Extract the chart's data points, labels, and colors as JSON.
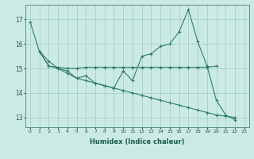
{
  "title": "",
  "xlabel": "Humidex (Indice chaleur)",
  "bg_color": "#cceae4",
  "line_color": "#2e7d6e",
  "grid_color": "#99ccc4",
  "x": [
    0,
    1,
    2,
    3,
    4,
    5,
    6,
    7,
    8,
    9,
    10,
    11,
    12,
    13,
    14,
    15,
    16,
    17,
    18,
    19,
    20,
    21,
    22,
    23
  ],
  "yA": [
    16.9,
    15.7,
    15.1,
    15.0,
    14.9,
    14.6,
    14.7,
    14.4,
    14.3,
    14.2,
    14.9,
    14.5,
    15.5,
    15.6,
    15.9,
    16.0,
    16.5,
    17.4,
    16.1,
    15.1,
    13.7,
    13.1,
    12.9,
    null
  ],
  "yB": [
    null,
    15.7,
    15.1,
    15.05,
    15.0,
    15.0,
    15.05,
    15.05,
    15.05,
    15.05,
    15.05,
    15.05,
    15.05,
    15.05,
    15.05,
    15.05,
    15.05,
    15.05,
    15.05,
    15.05,
    15.1,
    null,
    null,
    null
  ],
  "yC": [
    null,
    15.7,
    15.3,
    15.0,
    14.8,
    14.6,
    14.5,
    14.4,
    14.3,
    14.2,
    14.1,
    14.0,
    13.9,
    13.8,
    13.7,
    13.6,
    13.5,
    13.4,
    13.3,
    13.2,
    13.1,
    13.05,
    13.0,
    null
  ],
  "ylim": [
    12.6,
    17.6
  ],
  "yticks": [
    13,
    14,
    15,
    16,
    17
  ],
  "xticks": [
    0,
    1,
    2,
    3,
    4,
    5,
    6,
    7,
    8,
    9,
    10,
    11,
    12,
    13,
    14,
    15,
    16,
    17,
    18,
    19,
    20,
    21,
    22,
    23
  ]
}
